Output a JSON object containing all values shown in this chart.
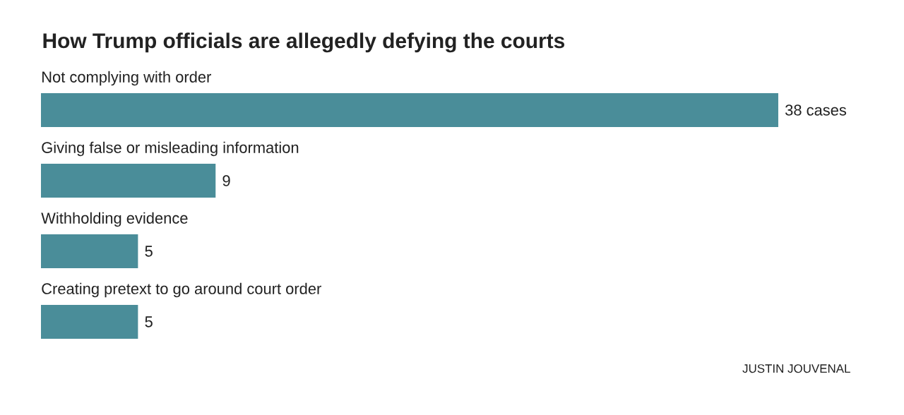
{
  "chart_data": {
    "type": "bar",
    "orientation": "horizontal",
    "title": "How Trump officials are allegedly defying the courts",
    "categories": [
      "Not complying with order",
      "Giving false or misleading information",
      "Withholding evidence",
      "Creating pretext to go around court order"
    ],
    "values": [
      38,
      9,
      5,
      5
    ],
    "value_labels": [
      "38 cases",
      "9",
      "5",
      "5"
    ],
    "color": "#4a8d99",
    "annotations": [
      "JUSTIN JOUVENAL"
    ]
  }
}
